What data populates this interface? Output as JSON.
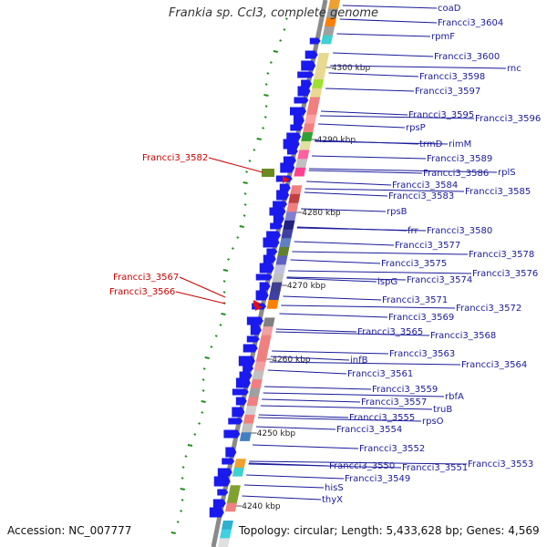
{
  "title": "Frankia sp. CcI3, complete genome",
  "accession": "Accession: NC_007777",
  "footer": {
    "topology": "Topology: circular",
    "length": "Length: 5,433,628 bp",
    "genes": "Genes: 4,569"
  },
  "colors": {
    "backbone": "#8a8a8a",
    "forward_arrow": "#1a1aee",
    "reverse_arrow": "#e01010",
    "right_label": "#1a1a99",
    "left_label": "#cc0000",
    "gc_dot": "#1f8f1f"
  },
  "scale_labels": [
    "4300 kbp",
    "4290 kbp",
    "4280 kbp",
    "4270 kbp",
    "4260 kbp",
    "4250 kbp",
    "4240 kbp"
  ],
  "right_genes": [
    "coaD",
    "Francci3_3604",
    "rpmF",
    "Francci3_3600",
    "rnc",
    "Francci3_3598",
    "Francci3_3597",
    "Francci3_3595",
    "Francci3_3596",
    "rpsP",
    "rimM",
    "trmD",
    "Francci3_3589",
    "rplS",
    "Francci3_3586",
    "Francci3_3584",
    "Francci3_3585",
    "Francci3_3583",
    "rpsB",
    "frr",
    "Francci3_3580",
    "Francci3_3577",
    "Francci3_3578",
    "Francci3_3575",
    "Francci3_3576",
    "ispG",
    "Francci3_3574",
    "Francci3_3571",
    "Francci3_3572",
    "Francci3_3569",
    "Francci3_3565",
    "Francci3_3568",
    "Francci3_3563",
    "infB",
    "Francci3_3564",
    "Francci3_3561",
    "Francci3_3559",
    "rbfA",
    "Francci3_3557",
    "truB",
    "Francci3_3555",
    "rpsO",
    "Francci3_3554",
    "Francci3_3552",
    "Francci3_3550",
    "Francci3_3551",
    "Francci3_3553",
    "Francci3_3549",
    "hisS",
    "thyX"
  ],
  "left_genes": [
    "Francci3_3582",
    "Francci3_3567",
    "Francci3_3566"
  ]
}
